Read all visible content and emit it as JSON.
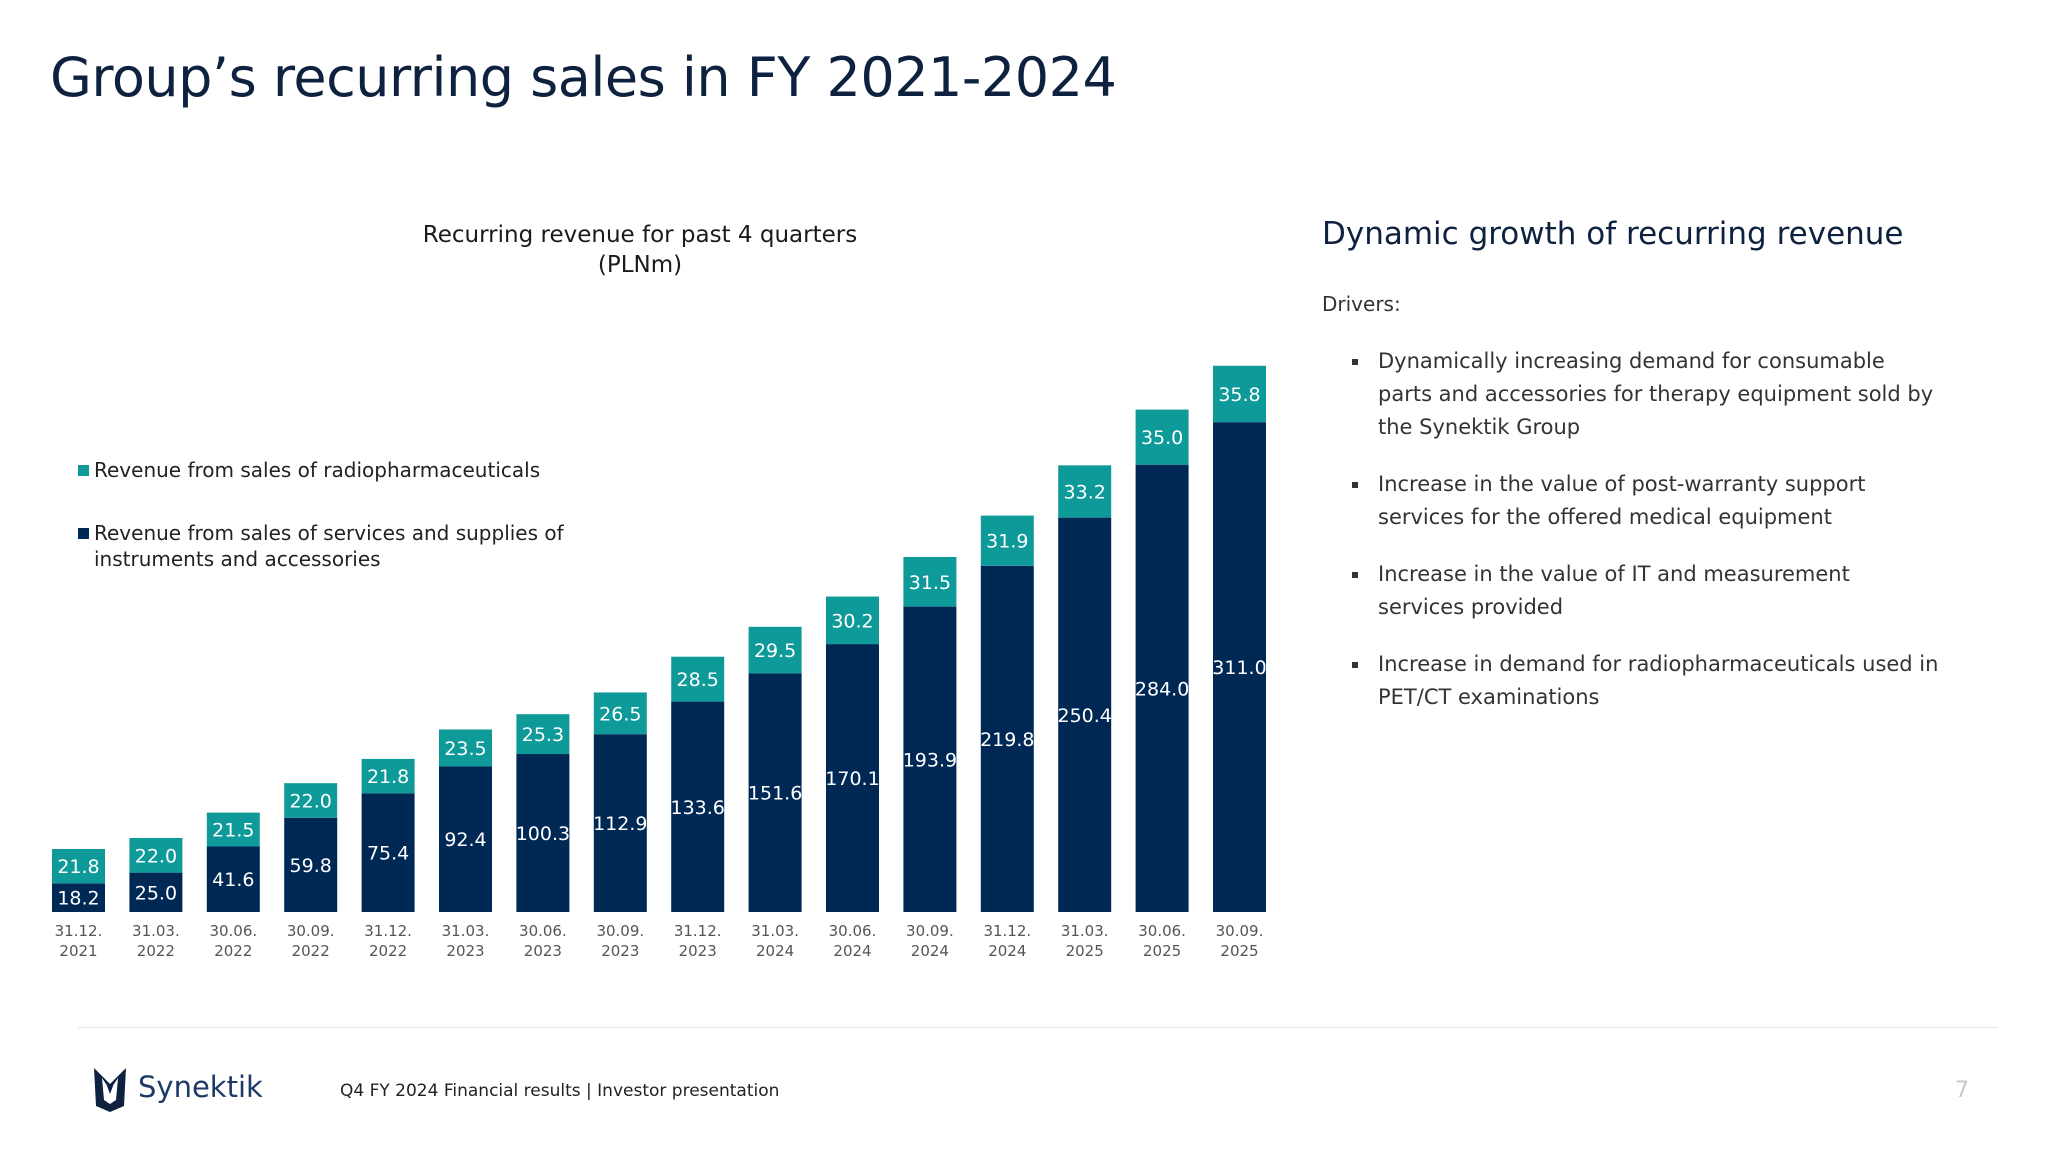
{
  "page": {
    "title": "Group’s recurring sales in FY 2021-2024",
    "right_heading": "Dynamic growth of recurring revenue",
    "drivers_label": "Drivers:",
    "drivers": [
      "Dynamically increasing demand for consumable parts and accessories for therapy equipment sold by the Synektik Group",
      "Increase in the value of post-warranty support services for the offered medical equipment",
      "Increase in the value of IT and measurement services provided",
      "Increase in demand for radiopharmaceuticals used in PET/CT examinations"
    ],
    "footer": "Q4 FY 2024 Financial results |  Investor presentation",
    "page_number": "7",
    "logo_text": "Synektik"
  },
  "colors": {
    "navy": "#002855",
    "teal": "#0f9a9a",
    "title": "#0e2240"
  },
  "chart_data": {
    "type": "bar",
    "stacked": true,
    "title": "Recurring revenue for past 4 quarters (PLNm)",
    "categories": [
      "31.12.\n2021",
      "31.03.\n2022",
      "30.06.\n2022",
      "30.09.\n2022",
      "31.12.\n2022",
      "31.03.\n2023",
      "30.06.\n2023",
      "30.09.\n2023",
      "31.12.\n2023",
      "31.03.\n2024",
      "30.06.\n2024",
      "30.09.\n2024",
      "31.12.\n2024",
      "31.03.\n2025",
      "30.06.\n2025",
      "30.09.\n2025"
    ],
    "series": [
      {
        "name": "Revenue from sales of services and supplies of instruments and accessories",
        "color": "#002855",
        "values": [
          18.2,
          25.0,
          41.6,
          59.8,
          75.4,
          92.4,
          100.3,
          112.9,
          133.6,
          151.6,
          170.1,
          193.9,
          219.8,
          250.4,
          284.0,
          311.0
        ]
      },
      {
        "name": "Revenue from sales of radiopharmaceuticals",
        "color": "#0f9a9a",
        "values": [
          21.8,
          22.0,
          21.5,
          22.0,
          21.8,
          23.5,
          25.3,
          26.5,
          28.5,
          29.5,
          30.2,
          31.5,
          31.9,
          33.2,
          35.0,
          35.8
        ]
      }
    ],
    "legend": "left",
    "grid": false
  }
}
